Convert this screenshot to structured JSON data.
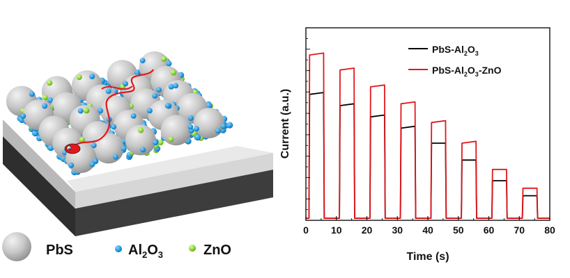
{
  "schematic": {
    "legend": [
      {
        "label": "PbS",
        "color": "#c4c4c4"
      },
      {
        "label_main": "Al",
        "label_sub1": "2",
        "label_mid": "O",
        "label_sub2": "3",
        "color": "#2a9de0"
      },
      {
        "label": "ZnO",
        "color": "#8ed63a"
      }
    ],
    "electron_label": "e",
    "colors": {
      "pbs": "#c4c4c4",
      "al2o3": "#2a9de0",
      "zno": "#8ed63a",
      "path": "#e3161b"
    }
  },
  "chart_data": {
    "type": "line",
    "title": "",
    "xlabel": "Time (s)",
    "ylabel": "Current (a.u.)",
    "xlim": [
      0,
      80
    ],
    "ylim": [
      0,
      1
    ],
    "xticks": [
      0,
      10,
      20,
      30,
      40,
      50,
      60,
      70,
      80
    ],
    "y_tick_labels_shown": false,
    "legend_position": "top-right",
    "cycle_period_s": 10,
    "on_duration_s": 5,
    "first_on_s": 1,
    "series": [
      {
        "name": "PbS-Al2O3",
        "legend": {
          "main": "PbS-Al",
          "sub1": "2",
          "mid": "O",
          "sub2": "3",
          "tail": ""
        },
        "color": "#000000",
        "peaks": [
          0.66,
          0.6,
          0.54,
          0.48,
          0.4,
          0.31,
          0.2,
          0.12
        ],
        "plateaus": [
          0.67,
          0.61,
          0.55,
          0.49,
          0.4,
          0.31,
          0.2,
          0.12
        ]
      },
      {
        "name": "PbS-Al2O3-ZnO",
        "legend": {
          "main": "PbS-Al",
          "sub1": "2",
          "mid": "O",
          "sub2": "3",
          "tail": "-ZnO"
        },
        "color": "#e3161b",
        "peaks": [
          0.87,
          0.79,
          0.7,
          0.61,
          0.51,
          0.4,
          0.26,
          0.16
        ],
        "plateaus": [
          0.88,
          0.8,
          0.71,
          0.62,
          0.52,
          0.41,
          0.26,
          0.16
        ]
      }
    ]
  }
}
